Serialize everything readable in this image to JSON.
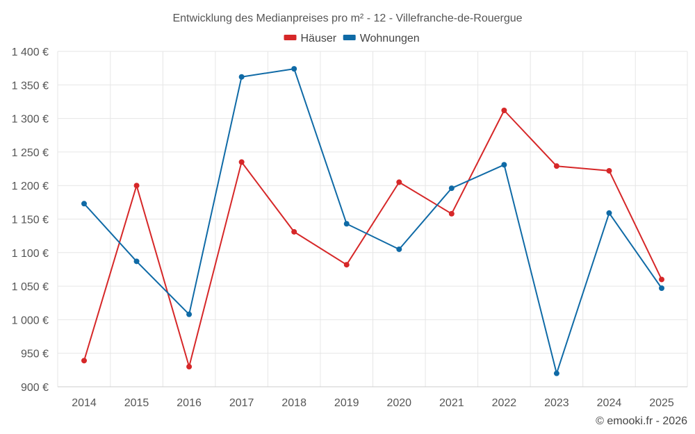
{
  "chart_data": {
    "type": "line",
    "title": "Entwicklung des Medianpreises pro m² - 12 - Villefranche-de-Rouergue",
    "categories": [
      "2014",
      "2015",
      "2016",
      "2017",
      "2018",
      "2019",
      "2020",
      "2021",
      "2022",
      "2023",
      "2024",
      "2025"
    ],
    "series": [
      {
        "name": "Häuser",
        "color": "#d62728",
        "values": [
          939,
          1200,
          930,
          1235,
          1131,
          1082,
          1205,
          1158,
          1312,
          1229,
          1222,
          1060
        ]
      },
      {
        "name": "Wohnungen",
        "color": "#0f6aa6",
        "values": [
          1173,
          1087,
          1008,
          1362,
          1374,
          1143,
          1105,
          1196,
          1231,
          920,
          1159,
          1047
        ]
      }
    ],
    "ylim": [
      900,
      1400
    ],
    "yticks": [
      900,
      950,
      1000,
      1050,
      1100,
      1150,
      1200,
      1250,
      1300,
      1350,
      1400
    ],
    "ytick_labels": [
      "900 €",
      "950 €",
      "1 000 €",
      "1 050 €",
      "1 100 €",
      "1 150 €",
      "1 200 €",
      "1 250 €",
      "1 300 €",
      "1 350 €",
      "1 400 €"
    ],
    "xlabel": "",
    "ylabel": "",
    "grid": true,
    "legend": "top-center"
  },
  "credit": "© emooki.fr - 2026"
}
